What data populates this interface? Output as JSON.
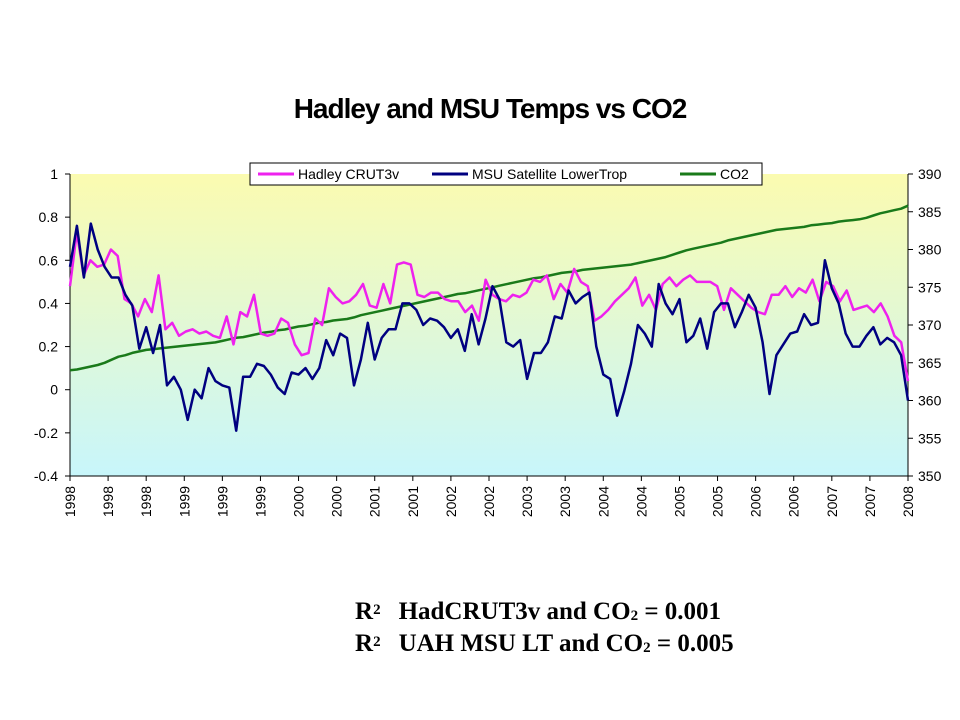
{
  "chart_data": {
    "type": "line",
    "title": "Hadley and MSU Temps vs CO2",
    "legend_position": "top-right",
    "gridlines": false,
    "x_tick_labels": [
      "1998",
      "1998",
      "1998",
      "1999",
      "1999",
      "1999",
      "2000",
      "2000",
      "2001",
      "2001",
      "2002",
      "2002",
      "2003",
      "2003",
      "2004",
      "2004",
      "2005",
      "2005",
      "2006",
      "2006",
      "2007",
      "2007",
      "2008"
    ],
    "y_left": {
      "min": -0.4,
      "max": 1,
      "ticks": [
        "1",
        "0.8",
        "0.6",
        "0.4",
        "0.2",
        "0",
        "-0.2",
        "-0.4"
      ]
    },
    "y_right": {
      "min": 350,
      "max": 390,
      "ticks": [
        "390",
        "385",
        "380",
        "375",
        "370",
        "365",
        "360",
        "355",
        "350"
      ]
    },
    "background": {
      "top": "#fbfbb0",
      "bottom": "#c8f6fb"
    },
    "series": [
      {
        "name": "Hadley CRUT3v",
        "color": "#ee22ee",
        "axis": "left",
        "values": [
          0.48,
          0.73,
          0.53,
          0.6,
          0.57,
          0.58,
          0.65,
          0.62,
          0.42,
          0.4,
          0.34,
          0.42,
          0.36,
          0.53,
          0.28,
          0.31,
          0.25,
          0.27,
          0.28,
          0.26,
          0.27,
          0.25,
          0.24,
          0.34,
          0.21,
          0.36,
          0.34,
          0.44,
          0.26,
          0.25,
          0.26,
          0.33,
          0.31,
          0.21,
          0.16,
          0.17,
          0.33,
          0.3,
          0.47,
          0.43,
          0.4,
          0.41,
          0.44,
          0.49,
          0.39,
          0.38,
          0.49,
          0.4,
          0.58,
          0.59,
          0.58,
          0.44,
          0.43,
          0.45,
          0.45,
          0.42,
          0.41,
          0.41,
          0.36,
          0.39,
          0.32,
          0.51,
          0.44,
          0.42,
          0.41,
          0.44,
          0.43,
          0.45,
          0.51,
          0.5,
          0.53,
          0.42,
          0.49,
          0.45,
          0.56,
          0.5,
          0.48,
          0.32,
          0.34,
          0.37,
          0.41,
          0.44,
          0.47,
          0.52,
          0.39,
          0.44,
          0.37,
          0.49,
          0.52,
          0.48,
          0.51,
          0.53,
          0.5,
          0.5,
          0.5,
          0.48,
          0.37,
          0.47,
          0.44,
          0.41,
          0.38,
          0.36,
          0.35,
          0.44,
          0.44,
          0.48,
          0.43,
          0.47,
          0.45,
          0.51,
          0.41,
          0.5,
          0.48,
          0.41,
          0.46,
          0.37,
          0.38,
          0.39,
          0.36,
          0.4,
          0.34,
          0.25,
          0.22,
          0.04
        ]
      },
      {
        "name": "MSU Satellite LowerTrop",
        "color": "#000080",
        "axis": "left",
        "values": [
          0.57,
          0.76,
          0.52,
          0.77,
          0.65,
          0.57,
          0.52,
          0.52,
          0.44,
          0.39,
          0.19,
          0.29,
          0.17,
          0.3,
          0.02,
          0.06,
          0.0,
          -0.14,
          0.0,
          -0.04,
          0.1,
          0.04,
          0.02,
          0.01,
          -0.19,
          0.06,
          0.06,
          0.12,
          0.11,
          0.07,
          0.01,
          -0.02,
          0.08,
          0.07,
          0.1,
          0.05,
          0.1,
          0.23,
          0.16,
          0.26,
          0.24,
          0.02,
          0.14,
          0.31,
          0.14,
          0.24,
          0.28,
          0.28,
          0.4,
          0.4,
          0.37,
          0.3,
          0.33,
          0.32,
          0.29,
          0.24,
          0.28,
          0.18,
          0.35,
          0.21,
          0.33,
          0.48,
          0.42,
          0.22,
          0.2,
          0.23,
          0.05,
          0.17,
          0.17,
          0.22,
          0.34,
          0.33,
          0.46,
          0.4,
          0.43,
          0.45,
          0.2,
          0.07,
          0.05,
          -0.12,
          -0.01,
          0.12,
          0.3,
          0.26,
          0.2,
          0.49,
          0.4,
          0.35,
          0.42,
          0.22,
          0.25,
          0.33,
          0.19,
          0.36,
          0.4,
          0.4,
          0.29,
          0.36,
          0.44,
          0.38,
          0.22,
          -0.02,
          0.16,
          0.21,
          0.26,
          0.27,
          0.35,
          0.3,
          0.31,
          0.6,
          0.47,
          0.4,
          0.26,
          0.2,
          0.2,
          0.25,
          0.29,
          0.21,
          0.24,
          0.22,
          0.16,
          -0.05
        ]
      },
      {
        "name": "CO2",
        "color": "#1a7a1a",
        "axis": "right",
        "values": [
          364.0,
          364.1,
          364.3,
          364.5,
          364.7,
          365.0,
          365.4,
          365.8,
          366.0,
          366.3,
          366.5,
          366.7,
          366.8,
          366.9,
          367.0,
          367.1,
          367.2,
          367.3,
          367.4,
          367.5,
          367.6,
          367.7,
          367.9,
          368.1,
          368.3,
          368.4,
          368.6,
          368.8,
          369.0,
          369.1,
          369.3,
          369.4,
          369.6,
          369.8,
          369.9,
          370.1,
          370.3,
          370.4,
          370.6,
          370.7,
          370.8,
          371.0,
          371.3,
          371.5,
          371.7,
          371.9,
          372.1,
          372.3,
          372.5,
          372.7,
          372.9,
          373.1,
          373.3,
          373.5,
          373.7,
          373.9,
          374.1,
          374.2,
          374.4,
          374.6,
          374.8,
          375.0,
          375.2,
          375.4,
          375.6,
          375.8,
          376.0,
          376.2,
          376.3,
          376.5,
          376.7,
          376.9,
          377.0,
          377.1,
          377.3,
          377.4,
          377.5,
          377.6,
          377.7,
          377.8,
          377.9,
          378.0,
          378.2,
          378.4,
          378.6,
          378.8,
          379.0,
          379.3,
          379.6,
          379.9,
          380.1,
          380.3,
          380.5,
          380.7,
          380.9,
          381.2,
          381.4,
          381.6,
          381.8,
          382.0,
          382.2,
          382.4,
          382.6,
          382.7,
          382.8,
          382.9,
          383.0,
          383.2,
          383.3,
          383.4,
          383.5,
          383.7,
          383.8,
          383.9,
          384.0,
          384.2,
          384.5,
          384.8,
          385.0,
          385.2,
          385.4,
          385.8
        ]
      }
    ]
  },
  "stats": {
    "line1": {
      "r": "R",
      "r_sup": "2",
      "label": "HadCRUT3v and CO",
      "sub": "2",
      "rest": " = 0.001"
    },
    "line2": {
      "r": "R",
      "r_sup": "2",
      "label": "UAH MSU LT and CO",
      "sub": "2",
      "rest": " = 0.005"
    }
  }
}
